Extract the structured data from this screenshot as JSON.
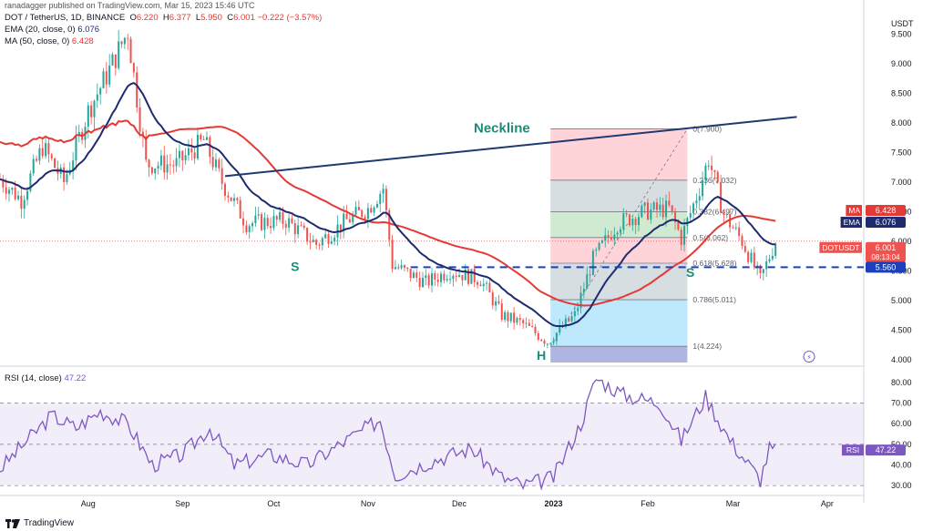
{
  "header": {
    "publish_line": "ranadagger published on TradingView.com, Mar 15, 2023 15:46 UTC",
    "symbol_line": "DOT / TetherUS, 1D, BINANCE",
    "ohlc": {
      "O_label": "O",
      "O": "6.220",
      "H_label": "H",
      "H": "6.377",
      "L_label": "L",
      "L": "5.950",
      "C_label": "C",
      "C": "6.001",
      "change": "−0.222 (−3.57%)"
    },
    "ema_label": "EMA (20, close, 0)",
    "ema_value": "6.076",
    "ma_label": "MA (50, close, 0)",
    "ma_value": "6.428",
    "rsi_label": "RSI (14, close)",
    "rsi_value": "47.22"
  },
  "footer": {
    "logo_text": "TradingView"
  },
  "colors": {
    "up": "#26a69a",
    "down": "#ef5350",
    "ema": "#1e2b6e",
    "ma": "#e53935",
    "rsi": "#7e57c2",
    "neckline": "#1e3a6e",
    "support": "#1a3fbf",
    "annotation": "#1e8a78"
  },
  "chart_data": {
    "type": "candlestick",
    "price_axis": {
      "unit_label": "USDT",
      "ticks": [
        "9.500",
        "9.000",
        "8.500",
        "8.000",
        "7.500",
        "7.000",
        "6.500",
        "6.000",
        "5.500",
        "5.000",
        "4.500",
        "4.000"
      ],
      "range": [
        3.95,
        9.8
      ]
    },
    "time_axis": {
      "ticks": [
        "Aug",
        "Sep",
        "Oct",
        "Nov",
        "Dec",
        "2023",
        "Feb",
        "Mar",
        "Apr"
      ],
      "tick_dates": [
        "2022-08-01",
        "2022-09-01",
        "2022-10-01",
        "2022-11-01",
        "2022-12-01",
        "2023-01-01",
        "2023-02-01",
        "2023-03-01",
        "2023-04-01"
      ],
      "range": [
        "2022-07-03",
        "2023-04-13"
      ]
    },
    "price_badges": [
      {
        "label": "MA",
        "value": "6.428",
        "color": "#e53935"
      },
      {
        "label": "EMA",
        "value": "6.076",
        "color": "#1e2b6e"
      },
      {
        "label": "DOTUSDT",
        "value": "6.001",
        "sub": "08:13:04",
        "color": "#ef5350"
      },
      {
        "label": "",
        "value": "5.560",
        "color": "#1a3fbf"
      }
    ],
    "ohlc_anchors": [
      [
        "2022-07-03",
        7.05
      ],
      [
        "2022-07-10",
        6.7
      ],
      [
        "2022-07-17",
        7.6
      ],
      [
        "2022-07-24",
        7.0
      ],
      [
        "2022-08-01",
        8.2
      ],
      [
        "2022-08-08",
        8.9
      ],
      [
        "2022-08-14",
        9.55
      ],
      [
        "2022-08-20",
        7.3
      ],
      [
        "2022-08-30",
        7.3
      ],
      [
        "2022-09-08",
        7.7
      ],
      [
        "2022-09-14",
        7.0
      ],
      [
        "2022-09-22",
        6.3
      ],
      [
        "2022-10-05",
        6.35
      ],
      [
        "2022-10-15",
        5.95
      ],
      [
        "2022-10-25",
        6.35
      ],
      [
        "2022-11-01",
        6.55
      ],
      [
        "2022-11-06",
        6.9
      ],
      [
        "2022-11-09",
        5.6
      ],
      [
        "2022-11-20",
        5.3
      ],
      [
        "2022-11-28",
        5.5
      ],
      [
        "2022-12-08",
        5.35
      ],
      [
        "2022-12-15",
        4.75
      ],
      [
        "2022-12-22",
        4.6
      ],
      [
        "2022-12-30",
        4.3
      ],
      [
        "2023-01-08",
        4.75
      ],
      [
        "2023-01-14",
        5.7
      ],
      [
        "2023-01-22",
        6.3
      ],
      [
        "2023-01-31",
        6.5
      ],
      [
        "2023-02-08",
        6.55
      ],
      [
        "2023-02-12",
        6.05
      ],
      [
        "2023-02-18",
        6.9
      ],
      [
        "2023-02-21",
        7.4
      ],
      [
        "2023-02-26",
        6.45
      ],
      [
        "2023-03-04",
        6.0
      ],
      [
        "2023-03-10",
        5.35
      ],
      [
        "2023-03-15",
        6.0
      ]
    ],
    "neckline": {
      "label": "Neckline",
      "from": [
        "2022-09-15",
        7.1
      ],
      "to": [
        "2023-03-22",
        8.1
      ]
    },
    "support_line": {
      "value": 5.56,
      "from": "2022-11-15",
      "to": "2023-04-13"
    },
    "annotations": [
      {
        "text": "S",
        "date": "2022-10-08",
        "price": 5.5
      },
      {
        "text": "H",
        "date": "2022-12-28",
        "price": 4.0
      },
      {
        "text": "S",
        "date": "2023-02-15",
        "price": 5.4
      }
    ],
    "fibonacci": {
      "from_date": "2022-12-31",
      "to_date": "2023-02-14",
      "levels": [
        {
          "ratio": "1",
          "value": 4.224,
          "label": "1(4.224)"
        },
        {
          "ratio": "0.786",
          "value": 5.011,
          "label": "0.786(5.011)"
        },
        {
          "ratio": "0.618",
          "value": 5.628,
          "label": "0.618(5.628)"
        },
        {
          "ratio": "0.5",
          "value": 6.062,
          "label": "0.5(6.062)"
        },
        {
          "ratio": "0.382",
          "value": 6.497,
          "label": "0.382(6.497)"
        },
        {
          "ratio": "0.236",
          "value": 7.032,
          "label": "0.236(7.032)"
        },
        {
          "ratio": "0",
          "value": 7.9,
          "label": "0(7.900)"
        }
      ],
      "zones": [
        "#9fa8da",
        "#b3e5fc",
        "#cfd8dc",
        "#ffcdd2",
        "#c8e6c9",
        "#cfd8dc",
        "#ffcdd2"
      ]
    },
    "rsi": {
      "ticks": [
        "80.00",
        "70.00",
        "60.00",
        "50.00",
        "40.00",
        "30.00"
      ],
      "range": [
        27,
        87
      ],
      "band": [
        30,
        70
      ],
      "anchors": [
        [
          "2022-07-03",
          38
        ],
        [
          "2022-07-12",
          52
        ],
        [
          "2022-07-20",
          64
        ],
        [
          "2022-07-28",
          58
        ],
        [
          "2022-08-05",
          66
        ],
        [
          "2022-08-14",
          60
        ],
        [
          "2022-08-22",
          40
        ],
        [
          "2022-09-01",
          45
        ],
        [
          "2022-09-10",
          58
        ],
        [
          "2022-09-18",
          40
        ],
        [
          "2022-09-30",
          45
        ],
        [
          "2022-10-12",
          40
        ],
        [
          "2022-10-25",
          52
        ],
        [
          "2022-11-05",
          62
        ],
        [
          "2022-11-10",
          35
        ],
        [
          "2022-11-22",
          42
        ],
        [
          "2022-12-05",
          48
        ],
        [
          "2022-12-15",
          34
        ],
        [
          "2022-12-22",
          30
        ],
        [
          "2023-01-01",
          34
        ],
        [
          "2023-01-10",
          60
        ],
        [
          "2023-01-15",
          82
        ],
        [
          "2023-01-24",
          74
        ],
        [
          "2023-02-05",
          70
        ],
        [
          "2023-02-12",
          52
        ],
        [
          "2023-02-20",
          73
        ],
        [
          "2023-02-28",
          52
        ],
        [
          "2023-03-10",
          33
        ],
        [
          "2023-03-13",
          48
        ],
        [
          "2023-03-15",
          47
        ]
      ],
      "badge": {
        "label": "RSI",
        "value": "47.22"
      }
    }
  }
}
